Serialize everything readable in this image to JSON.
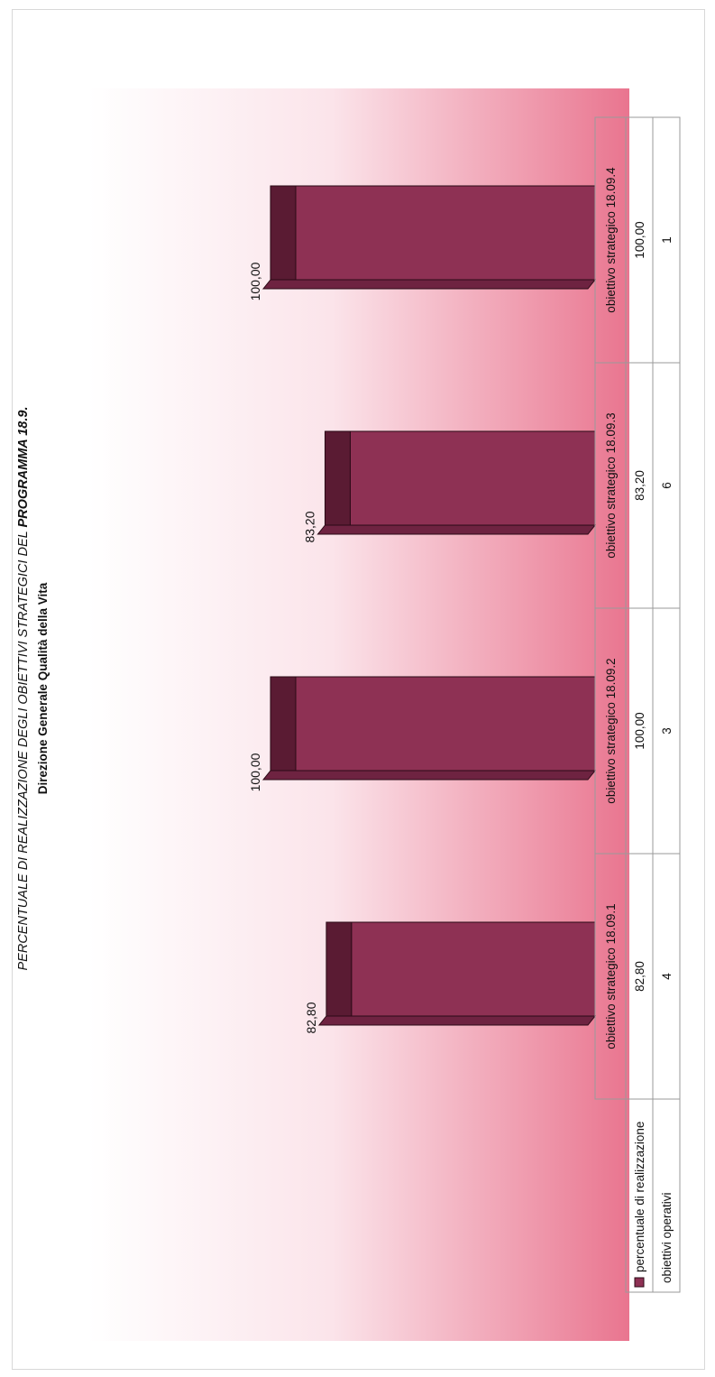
{
  "chart_data": {
    "type": "bar",
    "title": "PERCENTUALE DI REALIZZAZIONE DEGLI OBIETTIVI STRATEGICI DEL",
    "title_bold": "PROGRAMMA 18.9.",
    "subtitle": "Direzione Generale Qualità della Vita",
    "categories": [
      "obiettivo strategico 18.09.1",
      "obiettivo strategico 18.09.2",
      "obiettivo strategico 18.09.3",
      "obiettivo strategico 18.09.4"
    ],
    "series": [
      {
        "name": "percentuale di realizzazione",
        "values": [
          82.8,
          100,
          83.2,
          100
        ],
        "labels": [
          "82,80",
          "100,00",
          "83,20",
          "100,00"
        ],
        "color": "#8e3154"
      }
    ],
    "table_rows": [
      {
        "name": "percentuale di realizzazione",
        "values": [
          "82,80",
          "100,00",
          "83,20",
          "100,00"
        ]
      },
      {
        "name": "obiettivi operativi",
        "values": [
          "4",
          "3",
          "6",
          "1"
        ]
      }
    ],
    "ylim": [
      0,
      100
    ],
    "grid": false,
    "style": "3d-column",
    "legend": "data-table"
  }
}
